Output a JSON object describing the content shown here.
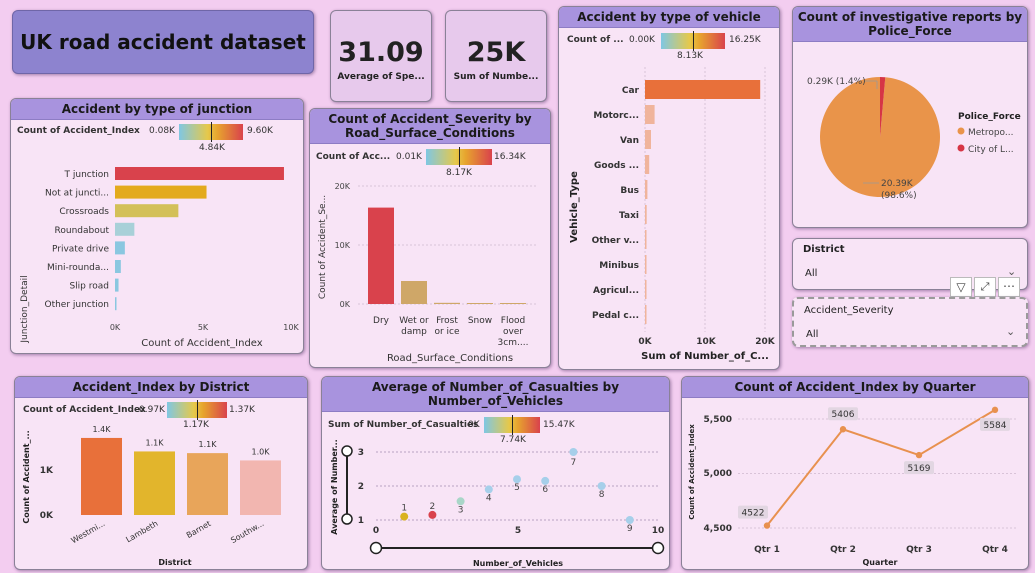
{
  "title": "UK road accident dataset",
  "kpi1": {
    "value": "31.09",
    "label": "Average of Spe..."
  },
  "kpi2": {
    "value": "25K",
    "label": "Sum of Numbe..."
  },
  "junction": {
    "title": "Accident by type of junction",
    "legend_label": "Count of Accident_Index",
    "min": "0.08K",
    "mid": "4.84K",
    "max": "9.60K",
    "ylabel": "Junction_Detail",
    "xlabel": "Count of Accident_Index",
    "ticks": [
      "0K",
      "5K",
      "10K"
    ]
  },
  "severity": {
    "title": "Count of Accident_Severity by Road_Surface_Conditions",
    "legend_label": "Count of Acc...",
    "min": "0.01K",
    "mid": "8.17K",
    "max": "16.34K",
    "ylabel": "Count of Accident_Se...",
    "xlabel": "Road_Surface_Conditions",
    "ticks": [
      "0K",
      "10K",
      "20K"
    ]
  },
  "vehicle": {
    "title": "Accident by type of vehicle",
    "legend_label": "Count of ...",
    "min": "0.00K",
    "mid": "8.13K",
    "max": "16.25K",
    "ylabel": "Vehicle_Type",
    "xlabel": "Sum of Number_of_C...",
    "ticks": [
      "0K",
      "10K",
      "20K"
    ]
  },
  "police": {
    "title": "Count of investigative reports by Police_Force",
    "legend_title": "Police_Force",
    "label_small": "0.29K (1.4%)",
    "label_big_1": "20.39K",
    "label_big_2": "(98.6%)",
    "legend": [
      {
        "name": "Metropo...",
        "color": "#e9944a"
      },
      {
        "name": "City of L...",
        "color": "#d63545"
      }
    ]
  },
  "district_slicer": {
    "title": "District",
    "value": "All"
  },
  "severity_slicer": {
    "title": "Accident_Severity",
    "value": "All"
  },
  "district": {
    "title": "Accident_Index by District",
    "legend_label": "Count of Accident_Index",
    "min": "0.97K",
    "mid": "1.17K",
    "max": "1.37K",
    "ylabel": "Count of Accident_...",
    "xlabel": "District",
    "ticks": [
      "0K",
      "1K"
    ]
  },
  "casualties": {
    "title": "Average of Number_of_Casualties by Number_of_Vehicles",
    "legend_label": "Sum of Number_of_Casualties",
    "min": "0K",
    "mid": "7.74K",
    "max": "15.47K",
    "ylabel": "Average of Number...",
    "xlabel": "Number_of_Vehicles",
    "yticks": [
      "1",
      "2",
      "3"
    ],
    "xticks": [
      "0",
      "5",
      "10"
    ]
  },
  "quarter": {
    "title": "Count of Accident_Index by Quarter",
    "ylabel": "Count of Accident_Index",
    "xlabel": "Quarter",
    "yticks": [
      "4,500",
      "5,000",
      "5,500"
    ]
  },
  "chart_data": [
    {
      "type": "bar",
      "orientation": "horizontal",
      "title": "Accident by type of junction",
      "categories": [
        "T junction",
        "Not at juncti...",
        "Crossroads",
        "Roundabout",
        "Private drive",
        "Mini-rounda...",
        "Slip road",
        "Other junction"
      ],
      "values": [
        9600,
        5200,
        3600,
        1100,
        560,
        330,
        200,
        80
      ],
      "colors": [
        "#d9424c",
        "#e3aa1d",
        "#d3c058",
        "#a8d0d8",
        "#8ac7e0",
        "#8ac7e0",
        "#8ac7e0",
        "#8ac7e0"
      ],
      "xlim": [
        0,
        10000
      ]
    },
    {
      "type": "bar",
      "title": "Count of Accident_Severity by Road_Surface_Conditions",
      "categories": [
        "Dry",
        "Wet or damp",
        "Frost or ice",
        "Snow",
        "Flood over 3cm...."
      ],
      "values": [
        16340,
        3900,
        200,
        80,
        10
      ],
      "colors": [
        "#d9424c",
        "#cfa768",
        "#cfa768",
        "#cfa768",
        "#cfa768"
      ],
      "ylim": [
        0,
        20000
      ]
    },
    {
      "type": "bar",
      "orientation": "horizontal",
      "title": "Accident by type of vehicle",
      "categories": [
        "Car",
        "Motorc...",
        "Van",
        "Goods ...",
        "Bus",
        "Taxi",
        "Other v...",
        "Minibus",
        "Agricul...",
        "Pedal c..."
      ],
      "values": [
        19200,
        1600,
        1000,
        700,
        400,
        280,
        150,
        100,
        60,
        40
      ],
      "colors": [
        "#e8703a",
        "#f0b49c",
        "#f0b49c",
        "#f0b49c",
        "#f0b49c",
        "#f0b49c",
        "#f0b49c",
        "#f0b49c",
        "#f0b49c",
        "#f0b49c"
      ],
      "xlim": [
        0,
        20000
      ]
    },
    {
      "type": "pie",
      "title": "Count of investigative reports by Police_Force",
      "categories": [
        "Metropo...",
        "City of L..."
      ],
      "values": [
        20390,
        290
      ]
    },
    {
      "type": "bar",
      "title": "Accident_Index by District",
      "categories": [
        "Westmi...",
        "Lambeth",
        "Barnet",
        "Southw..."
      ],
      "values": [
        1370,
        1130,
        1100,
        970
      ],
      "data_labels": [
        "1.4K",
        "1.1K",
        "1.1K",
        "1.0K"
      ],
      "colors": [
        "#e8703a",
        "#e2b52c",
        "#e8a55a",
        "#f2b6b0"
      ],
      "ylim": [
        0,
        1600
      ]
    },
    {
      "type": "scatter",
      "title": "Average of Number_of_Casualties by Number_of_Vehicles",
      "x": [
        1,
        2,
        3,
        4,
        5,
        6,
        7,
        8,
        9
      ],
      "y": [
        1.1,
        1.15,
        1.55,
        1.9,
        2.2,
        2.15,
        3.0,
        2.0,
        1.0
      ],
      "labels": [
        "1",
        "2",
        "3",
        "4",
        "5",
        "6",
        "7",
        "8",
        "9"
      ],
      "colors": [
        "#d9b21f",
        "#d9424c",
        "#a9d6c8",
        "#a6cfea",
        "#a6cfea",
        "#a6cfea",
        "#a6cfea",
        "#a6cfea",
        "#a6cfea"
      ],
      "xlim": [
        0,
        10
      ],
      "ylim": [
        1,
        3
      ]
    },
    {
      "type": "line",
      "title": "Count of Accident_Index by Quarter",
      "categories": [
        "Qtr 1",
        "Qtr 2",
        "Qtr 3",
        "Qtr 4"
      ],
      "values": [
        4522,
        5406,
        5169,
        5584
      ],
      "labels": [
        "4522",
        "5406",
        "5169",
        "5584"
      ],
      "ylim": [
        4500,
        5500
      ]
    }
  ]
}
